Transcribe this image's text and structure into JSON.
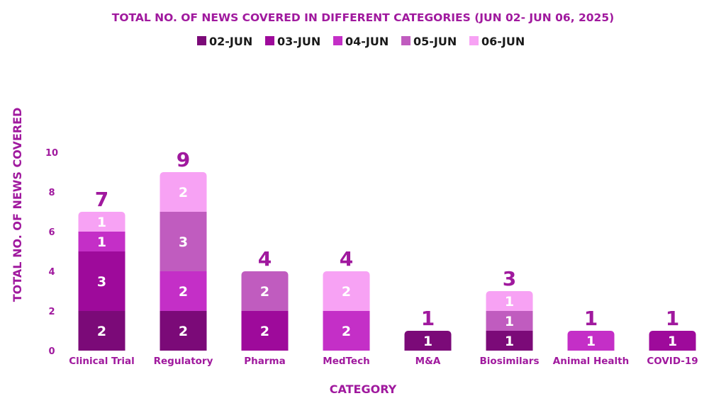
{
  "chart_data": {
    "type": "bar",
    "stacked": true,
    "title": "TOTAL NO. OF NEWS COVERED IN DIFFERENT CATEGORIES (JUN 02- JUN 06, 2025)",
    "xlabel": "CATEGORY",
    "ylabel": "TOTAL  NO. OF NEWS COVERED",
    "ylim": [
      0,
      10
    ],
    "yticks": [
      "0",
      "2",
      "4",
      "6",
      "8",
      "10"
    ],
    "grid": false,
    "legend_position": "top",
    "categories": [
      "Clinical Trial",
      "Regulatory",
      "Pharma",
      "MedTech",
      "M&A",
      "Biosimilars",
      "Animal Health",
      "COVID-19"
    ],
    "totals": [
      7,
      9,
      4,
      4,
      1,
      3,
      1,
      1
    ],
    "series": [
      {
        "name": "02-JUN",
        "color": "#7b0a78",
        "values": [
          2,
          2,
          0,
          0,
          1,
          1,
          0,
          0
        ]
      },
      {
        "name": "03-JUN",
        "color": "#9e0a9b",
        "values": [
          3,
          0,
          2,
          0,
          0,
          0,
          0,
          1
        ]
      },
      {
        "name": "04-JUN",
        "color": "#c42fc7",
        "values": [
          1,
          2,
          0,
          2,
          0,
          0,
          1,
          0
        ]
      },
      {
        "name": "05-JUN",
        "color": "#c05cbf",
        "values": [
          0,
          3,
          2,
          0,
          0,
          1,
          0,
          0
        ]
      },
      {
        "name": "06-JUN",
        "color": "#f7a2f4",
        "values": [
          1,
          2,
          0,
          2,
          0,
          1,
          0,
          0
        ]
      }
    ]
  }
}
